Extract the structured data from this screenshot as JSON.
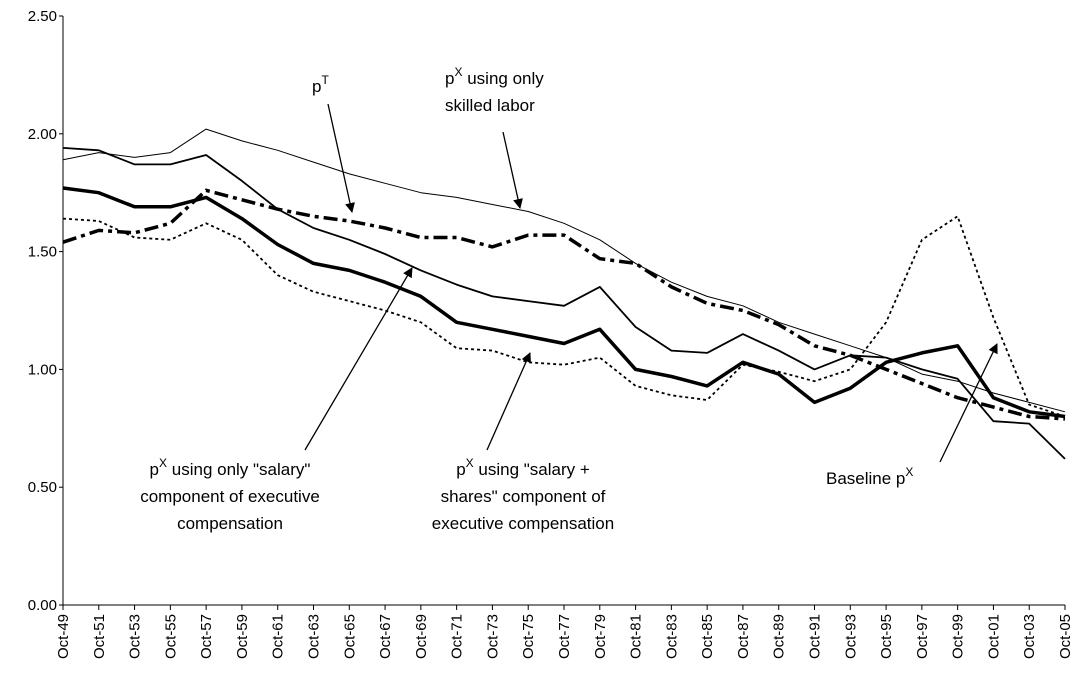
{
  "chart_data": {
    "type": "line",
    "categories": [
      "Oct-49",
      "Oct-51",
      "Oct-53",
      "Oct-55",
      "Oct-57",
      "Oct-59",
      "Oct-61",
      "Oct-63",
      "Oct-65",
      "Oct-67",
      "Oct-69",
      "Oct-71",
      "Oct-73",
      "Oct-75",
      "Oct-77",
      "Oct-79",
      "Oct-81",
      "Oct-83",
      "Oct-85",
      "Oct-87",
      "Oct-89",
      "Oct-91",
      "Oct-93",
      "Oct-95",
      "Oct-97",
      "Oct-99",
      "Oct-01",
      "Oct-03",
      "Oct-05"
    ],
    "series": [
      {
        "color": "#000000",
        "width": 1,
        "dash": "solid",
        "values": [
          1.89,
          1.92,
          1.9,
          1.92,
          2.02,
          1.97,
          1.93,
          1.88,
          1.83,
          1.79,
          1.75,
          1.73,
          1.7,
          1.67,
          1.62,
          1.55,
          1.45,
          1.37,
          1.31,
          1.27,
          1.2,
          1.15,
          1.1,
          1.05,
          0.98,
          0.95,
          0.9,
          0.86,
          0.82
        ]
      },
      {
        "color": "#000000",
        "width": 1.8,
        "dash": "solid",
        "values": [
          1.94,
          1.93,
          1.87,
          1.87,
          1.91,
          1.8,
          1.68,
          1.6,
          1.55,
          1.49,
          1.42,
          1.36,
          1.31,
          1.29,
          1.27,
          1.35,
          1.18,
          1.08,
          1.07,
          1.15,
          1.08,
          1.0,
          1.06,
          1.05,
          1.0,
          0.96,
          0.78,
          0.77,
          0.62
        ]
      },
      {
        "color": "#000000",
        "width": 3.5,
        "dash": "solid",
        "values": [
          1.77,
          1.75,
          1.69,
          1.69,
          1.73,
          1.64,
          1.53,
          1.45,
          1.42,
          1.37,
          1.31,
          1.2,
          1.17,
          1.14,
          1.11,
          1.17,
          1.0,
          0.97,
          0.93,
          1.03,
          0.98,
          0.86,
          0.92,
          1.03,
          1.07,
          1.1,
          0.88,
          0.82,
          0.8
        ]
      },
      {
        "color": "#000000",
        "width": 3.5,
        "dash": "dashdot",
        "values": [
          1.54,
          1.59,
          1.58,
          1.62,
          1.76,
          1.72,
          1.68,
          1.65,
          1.63,
          1.6,
          1.56,
          1.56,
          1.52,
          1.57,
          1.57,
          1.47,
          1.45,
          1.35,
          1.28,
          1.25,
          1.19,
          1.1,
          1.06,
          1.0,
          0.94,
          0.88,
          0.84,
          0.8,
          0.79
        ]
      },
      {
        "color": "#000000",
        "width": 1.8,
        "dash": "dot",
        "values": [
          1.64,
          1.63,
          1.56,
          1.55,
          1.62,
          1.55,
          1.4,
          1.33,
          1.29,
          1.25,
          1.2,
          1.09,
          1.08,
          1.03,
          1.02,
          1.05,
          0.93,
          0.89,
          0.87,
          1.02,
          0.99,
          0.95,
          1.0,
          1.2,
          1.55,
          1.65,
          1.22,
          0.85,
          0.8
        ]
      }
    ],
    "ylim": [
      0,
      2.5
    ],
    "yticks": [
      {
        "value": 0,
        "label": "0.00"
      },
      {
        "value": 0.5,
        "label": "0.50"
      },
      {
        "value": 1,
        "label": "1.00"
      },
      {
        "value": 1.5,
        "label": "1.50"
      },
      {
        "value": 2,
        "label": "2.00"
      },
      {
        "value": 2.5,
        "label": "2.50"
      }
    ],
    "grid": false,
    "annotations": [
      {
        "lines": [
          {
            "base": "p",
            "sup": "T"
          }
        ]
      },
      {
        "lines": [
          {
            "base": "p",
            "sup": "X",
            "rest": " using only"
          },
          {
            "base": "skilled labor"
          }
        ]
      },
      {
        "lines": [
          {
            "base": "p",
            "sup": "X",
            "rest": " using only \"salary\""
          },
          {
            "base": "component of executive"
          },
          {
            "base": "compensation"
          }
        ]
      },
      {
        "lines": [
          {
            "base": "p",
            "sup": "X",
            "rest": " using \"salary +"
          },
          {
            "base": "shares\" component of"
          },
          {
            "base": "executive compensation"
          }
        ]
      },
      {
        "lines": [
          {
            "base": "Baseline p",
            "sup": "X"
          }
        ]
      }
    ]
  }
}
